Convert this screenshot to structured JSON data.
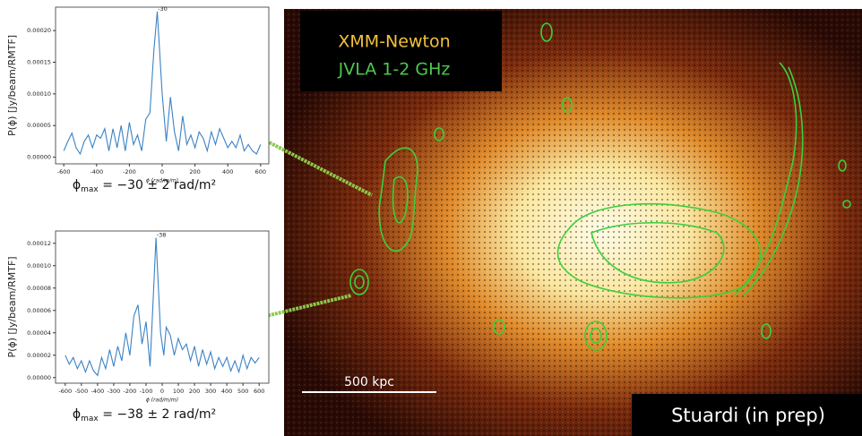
{
  "chart_data": [
    {
      "type": "line",
      "y_label": "P(ϕ) [Jy/beam/RMTF]",
      "x_label": "ϕ (rad/m/m)",
      "annotation": "-30",
      "caption": {
        "symbol": "ϕ",
        "sub": "max",
        "rest": " = −30 ± 2 rad/m²"
      },
      "xlim": [
        -650,
        650
      ],
      "ylim": [
        -1.05e-05,
        0.000237
      ],
      "xticks": [
        -600,
        -400,
        -200,
        0,
        200,
        400,
        600
      ],
      "yticks": [
        {
          "value": 0,
          "label": "0.00000"
        },
        {
          "value": 5e-05,
          "label": "0.00005"
        },
        {
          "value": 0.0001,
          "label": "0.00010"
        },
        {
          "value": 0.00015,
          "label": "0.00015"
        },
        {
          "value": 0.0002,
          "label": "0.00020"
        }
      ],
      "x": [
        -600,
        -575,
        -550,
        -525,
        -500,
        -475,
        -450,
        -425,
        -400,
        -375,
        -350,
        -325,
        -300,
        -275,
        -250,
        -225,
        -200,
        -175,
        -150,
        -125,
        -100,
        -75,
        -50,
        -30,
        0,
        25,
        50,
        75,
        100,
        125,
        150,
        175,
        200,
        225,
        250,
        275,
        300,
        325,
        350,
        375,
        400,
        425,
        450,
        475,
        500,
        525,
        550,
        575,
        600
      ],
      "series": [
        {
          "color": "#3b82c4",
          "values": [
            1e-05,
            2.5e-05,
            3.8e-05,
            1.5e-05,
            5e-06,
            2.5e-05,
            3.5e-05,
            1.5e-05,
            3.5e-05,
            3e-05,
            4.5e-05,
            1e-05,
            4.5e-05,
            1.5e-05,
            5e-05,
            1e-05,
            5.5e-05,
            2e-05,
            3.5e-05,
            1e-05,
            6e-05,
            7e-05,
            0.00017,
            0.00023,
            0.0001,
            2.5e-05,
            9.5e-05,
            4e-05,
            1e-05,
            6.5e-05,
            2e-05,
            3.5e-05,
            1.5e-05,
            4e-05,
            3e-05,
            1e-05,
            4e-05,
            2e-05,
            4.5e-05,
            3e-05,
            1.5e-05,
            2.5e-05,
            1.5e-05,
            3.5e-05,
            1e-05,
            2e-05,
            1e-05,
            5e-06,
            2e-05
          ]
        }
      ]
    },
    {
      "type": "line",
      "y_label": "P(ϕ) [Jy/beam/RMTF]",
      "x_label": "ϕ (rad/m/m)",
      "annotation": "-38",
      "caption": {
        "symbol": "ϕ",
        "sub": "max",
        "rest": " = −38 ± 2 rad/m²"
      },
      "xlim": [
        -660,
        660
      ],
      "ylim": [
        -5e-06,
        0.000131
      ],
      "xticks": [
        -600,
        -500,
        -400,
        -300,
        -200,
        -100,
        0,
        100,
        200,
        300,
        400,
        500,
        600
      ],
      "yticks": [
        {
          "value": 0,
          "label": "0.00000"
        },
        {
          "value": 2e-05,
          "label": "0.00002"
        },
        {
          "value": 4e-05,
          "label": "0.00004"
        },
        {
          "value": 6e-05,
          "label": "0.00006"
        },
        {
          "value": 8e-05,
          "label": "0.00008"
        },
        {
          "value": 0.0001,
          "label": "0.00010"
        },
        {
          "value": 0.00012,
          "label": "0.00012"
        }
      ],
      "x": [
        -600,
        -575,
        -550,
        -525,
        -500,
        -475,
        -450,
        -425,
        -400,
        -375,
        -350,
        -325,
        -300,
        -275,
        -250,
        -225,
        -200,
        -175,
        -150,
        -125,
        -100,
        -75,
        -38,
        -10,
        10,
        25,
        50,
        75,
        100,
        125,
        150,
        175,
        200,
        225,
        250,
        275,
        300,
        325,
        350,
        375,
        400,
        425,
        450,
        475,
        500,
        525,
        550,
        575,
        600
      ],
      "series": [
        {
          "color": "#3b82c4",
          "values": [
            2e-05,
            1.2e-05,
            1.8e-05,
            8e-06,
            1.5e-05,
            5e-06,
            1.5e-05,
            6e-06,
            2e-06,
            1.8e-05,
            8e-06,
            2.5e-05,
            1e-05,
            2.8e-05,
            1.5e-05,
            4e-05,
            2e-05,
            5.5e-05,
            6.5e-05,
            3e-05,
            5e-05,
            1e-05,
            0.000125,
            4e-05,
            2e-05,
            4.5e-05,
            3.8e-05,
            2e-05,
            3.5e-05,
            2.5e-05,
            3e-05,
            1.5e-05,
            2.8e-05,
            1e-05,
            2.5e-05,
            1.2e-05,
            2.3e-05,
            8e-06,
            1.8e-05,
            1e-05,
            1.8e-05,
            6e-06,
            1.5e-05,
            5e-06,
            2e-05,
            8e-06,
            1.8e-05,
            1.3e-05,
            1.8e-05
          ]
        }
      ]
    }
  ],
  "image": {
    "label_xray": "XMM-Newton",
    "label_radio": "JVLA 1-2 GHz",
    "scale_bar": "500 kpc",
    "credit": "Stuardi (in prep)"
  }
}
